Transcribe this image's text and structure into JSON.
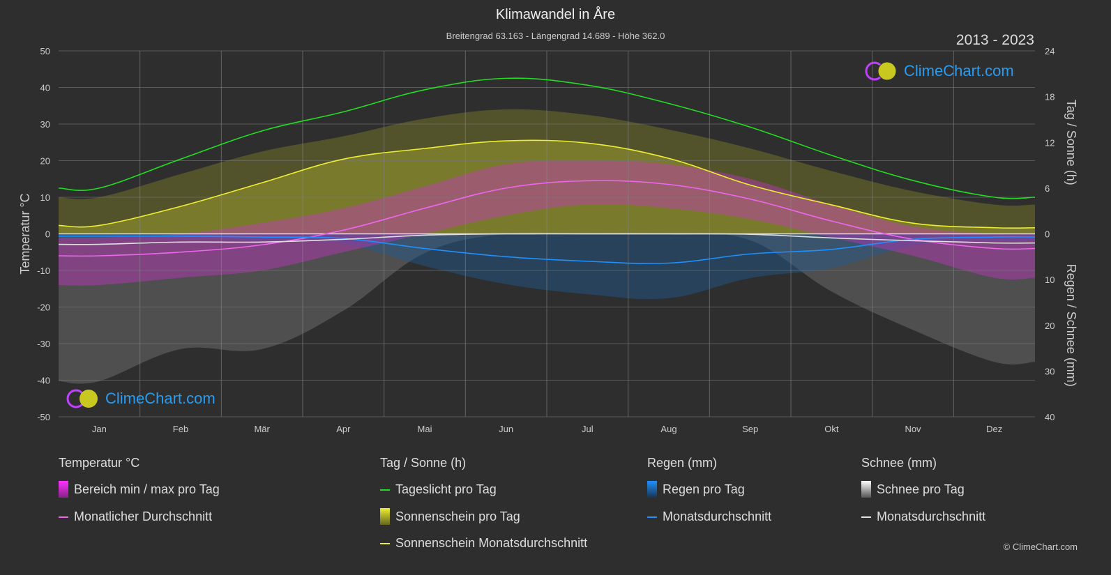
{
  "header": {
    "title": "Klimawandel in Åre",
    "subtitle": "Breitengrad 63.163 - Längengrad 14.689 - Höhe 362.0",
    "years": "2013 - 2023"
  },
  "logo": {
    "text": "ClimeChart.com"
  },
  "copyright": "© ClimeChart.com",
  "legend": {
    "temp": {
      "title": "Temperatur °C",
      "range": "Bereich min / max pro Tag",
      "avg": "Monatlicher Durchschnitt"
    },
    "sun": {
      "title": "Tag / Sonne (h)",
      "daylight": "Tageslicht pro Tag",
      "sunshine": "Sonnenschein pro Tag",
      "sun_avg": "Sonnenschein Monatsdurchschnitt"
    },
    "rain": {
      "title": "Regen (mm)",
      "per_day": "Regen pro Tag",
      "avg": "Monatsdurchschnitt"
    },
    "snow": {
      "title": "Schnee (mm)",
      "per_day": "Schnee pro Tag",
      "avg": "Monatsdurchschnitt"
    }
  },
  "colors": {
    "daylight": "#22dd22",
    "sun_avg": "#eeee33",
    "temp_avg": "#ee66ee",
    "rain_avg": "#1e90ff",
    "snow_avg": "#e0e0e0",
    "temp_range": "#cc33cc",
    "sunshine": "#9a9a30",
    "rain": "#1e5a90",
    "snow": "#777777"
  },
  "chart_data": {
    "type": "line",
    "categories": [
      "Jan",
      "Feb",
      "Mär",
      "Apr",
      "Mai",
      "Jun",
      "Jul",
      "Aug",
      "Sep",
      "Okt",
      "Nov",
      "Dez"
    ],
    "left_axis": {
      "label": "Temperatur °C",
      "range": [
        -50,
        50
      ],
      "ticks": [
        50,
        40,
        30,
        20,
        10,
        0,
        -10,
        -20,
        -30,
        -40,
        -50
      ]
    },
    "right_axis_top": {
      "label": "Tag / Sonne (h)",
      "range": [
        0,
        24
      ],
      "ticks": [
        24,
        18,
        12,
        6,
        0
      ]
    },
    "right_axis_bottom": {
      "label": "Regen / Schnee (mm)",
      "range": [
        0,
        40
      ],
      "ticks": [
        0,
        10,
        20,
        30,
        40
      ]
    },
    "series": [
      {
        "name": "Tageslicht pro Tag",
        "axis": "hours",
        "values": [
          6.0,
          9.8,
          13.5,
          16.0,
          18.9,
          20.4,
          19.5,
          17.1,
          14.0,
          10.3,
          7.0,
          4.8
        ]
      },
      {
        "name": "Sonnenschein Monatsdurchschnitt",
        "axis": "hours",
        "values": [
          1.1,
          3.6,
          6.7,
          9.8,
          11.2,
          12.2,
          11.9,
          9.9,
          6.4,
          3.8,
          1.4,
          0.8
        ]
      },
      {
        "name": "Monatlicher Durchschnitt",
        "axis": "temp",
        "values": [
          -6.0,
          -5.0,
          -3.0,
          1.0,
          7.0,
          12.5,
          14.5,
          13.5,
          9.5,
          3.5,
          -1.5,
          -4.0
        ]
      },
      {
        "name": "Temp min pro Tag",
        "axis": "temp",
        "values": [
          -14,
          -12,
          -10,
          -5,
          0,
          5,
          8,
          7,
          4,
          -1,
          -6,
          -12
        ]
      },
      {
        "name": "Temp max pro Tag",
        "axis": "temp",
        "values": [
          -1,
          0,
          3,
          7,
          13,
          19,
          20,
          19,
          15,
          8,
          2,
          0
        ]
      },
      {
        "name": "Regen Monatsdurchschnitt",
        "axis": "mm",
        "values": [
          0.5,
          0.5,
          0.7,
          1.0,
          3.2,
          5.0,
          6.0,
          6.4,
          4.4,
          3.4,
          1.2,
          0.7
        ]
      },
      {
        "name": "Schnee Monatsdurchschnitt",
        "axis": "mm",
        "values": [
          2.3,
          1.8,
          1.8,
          1.2,
          0.3,
          0,
          0,
          0,
          0.1,
          0.9,
          1.5,
          2.0
        ]
      }
    ],
    "grid": true
  }
}
